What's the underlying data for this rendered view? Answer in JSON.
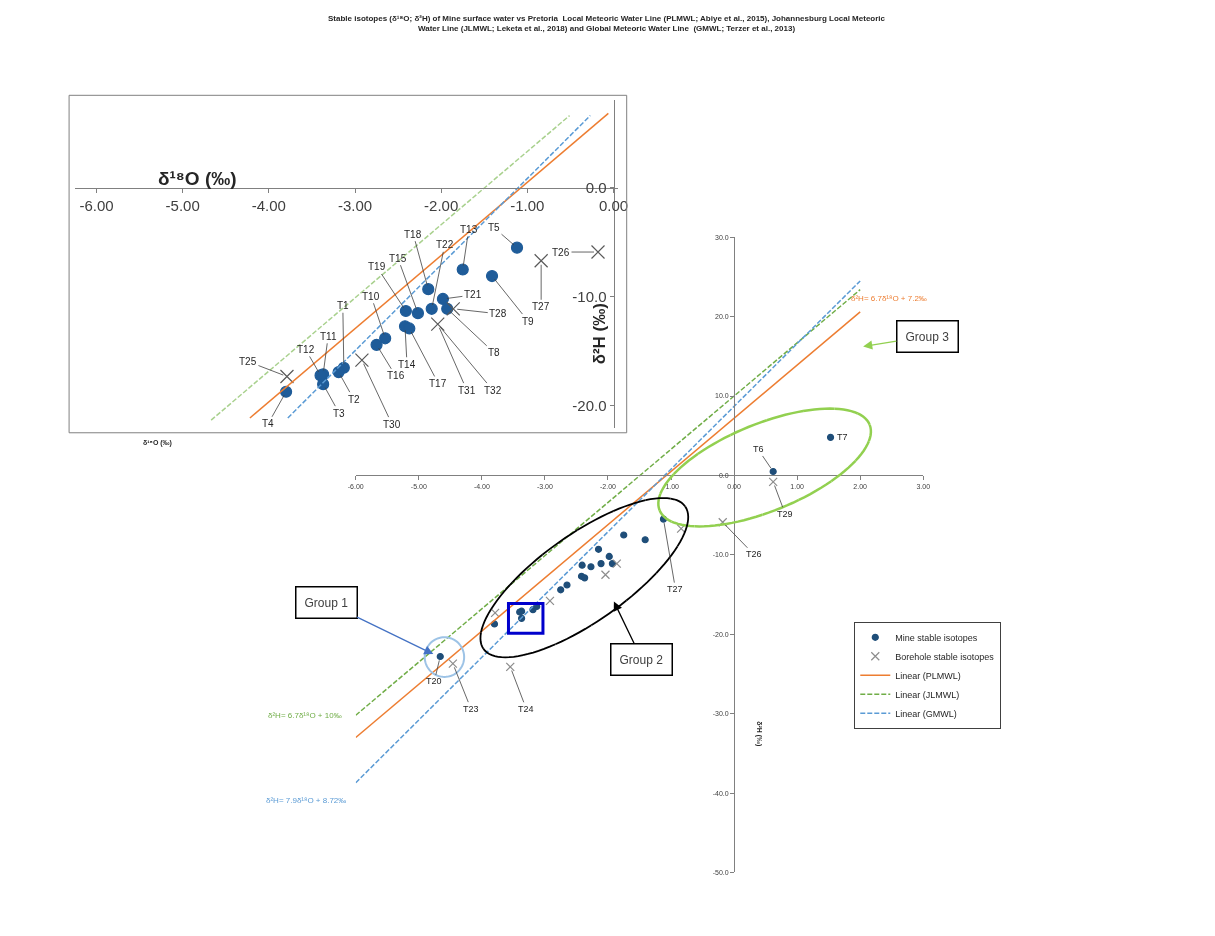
{
  "chart_data": [
    {
      "type": "scatter",
      "title": "Stable isotopes (δ¹⁸O; δ²H) of Mine surface water vs Pretoria  Local Meteoric Water Line (PLMWL; Abiye et al., 2015), Johannesburg Local Meteoric Water Line (JLMWL; Leketa et al., 2018) and Global Meteoric Water Line  (GMWL; Terzer et al., 2013)",
      "ylabel": "δ²H (‰)",
      "xlim": [
        -6,
        3
      ],
      "ylim": [
        -50,
        30
      ],
      "xticks": [
        {
          "value": -6,
          "label": "-6.00"
        },
        {
          "value": -5,
          "label": "-5.00"
        },
        {
          "value": -4,
          "label": "-4.00"
        },
        {
          "value": -3,
          "label": "-3.00"
        },
        {
          "value": -2,
          "label": "-2.00"
        },
        {
          "value": -1,
          "label": "-1.00"
        },
        {
          "value": 0,
          "label": "0.00"
        },
        {
          "value": 1,
          "label": "1.00"
        },
        {
          "value": 2,
          "label": "2.00"
        },
        {
          "value": 3,
          "label": "3.00"
        }
      ],
      "yticks": [
        {
          "value": -50,
          "label": "-50.0"
        },
        {
          "value": -40,
          "label": "-40.0"
        },
        {
          "value": -30,
          "label": "-30.0"
        },
        {
          "value": -20,
          "label": "-20.0"
        },
        {
          "value": -10,
          "label": "-10.0"
        },
        {
          "value": 0,
          "label": "0.0"
        },
        {
          "value": 10,
          "label": "10.0"
        },
        {
          "value": 20,
          "label": "20.0"
        },
        {
          "value": 30,
          "label": "30.0"
        }
      ],
      "legend": "bottom right",
      "series": [
        {
          "name": "Mine stable isotopes",
          "type": "scatter",
          "marker": "circle",
          "color": "#1f4e79",
          "x": [
            -1.12,
            -1.75,
            -1.41,
            -2.15,
            -1.98,
            -1.93,
            -2.11,
            -2.27,
            -2.41,
            -2.42,
            -2.37,
            -2.65,
            -2.75,
            -3.13,
            -3.19,
            -3.37,
            -3.4,
            -3.37,
            -3.8,
            -4.66,
            0.62,
            1.53
          ],
          "values": [
            -5.5,
            -7.5,
            -8.1,
            -9.3,
            -10.2,
            -11.1,
            -11.1,
            -11.5,
            -11.3,
            -12.7,
            -12.9,
            -13.8,
            -14.4,
            -16.5,
            -16.9,
            -17.1,
            -17.2,
            -18.0,
            -18.7,
            -22.8,
            0.5,
            4.8
          ]
        },
        {
          "name": "Borehole stable isotopes",
          "type": "scatter",
          "marker": "cross",
          "color": "#8c8c8c",
          "x": [
            -0.18,
            -0.84,
            -1.86,
            -2.04,
            -2.92,
            -3.79,
            -4.46,
            -3.55,
            0.62
          ],
          "values": [
            -5.9,
            -6.7,
            -11.1,
            -12.5,
            -15.8,
            -17.3,
            -23.7,
            -24.1,
            -0.8
          ]
        },
        {
          "name": "Linear (PLMWL)",
          "type": "line",
          "marker": "none",
          "line_style": "solid",
          "color": "#ed7d31",
          "x": [
            -6.0,
            2.0
          ],
          "values": [
            -33.0,
            20.6
          ]
        },
        {
          "name": "Linear (JLMWL)",
          "type": "line",
          "marker": "none",
          "line_style": "dashed",
          "color": "#70ad47",
          "x": [
            -6.0,
            2.0
          ],
          "values": [
            -30.2,
            23.4
          ]
        },
        {
          "name": "Linear (GMWL)",
          "type": "line",
          "marker": "none",
          "line_style": "dashed",
          "color": "#5b9bd5",
          "x": [
            -6.0,
            2.0
          ],
          "values": [
            -38.7,
            24.5
          ]
        }
      ],
      "annotations": [
        "δ²H= 6.7δ¹⁸O + 7.2‰",
        {
          "text": "δ²H= 6.7δ¹⁸O + 10‰",
          "x": -6.0,
          "y": -30.2
        },
        {
          "text": "δ²H= 7.9δ¹⁸O + 8.72‰",
          "x": -6.0,
          "y": -38.7
        },
        {
          "text": "Group 1",
          "x": -4.77,
          "y": -22.5
        },
        "Group 2",
        "Group 3",
        {
          "text": "T7",
          "x": 1.53,
          "y": 4.8
        },
        {
          "text": "T6",
          "x": 0.62,
          "y": 0.5
        },
        {
          "text": "T29",
          "x": 0.62,
          "y": -0.8
        },
        {
          "text": "T26",
          "x": -0.18,
          "y": -5.9
        },
        {
          "text": "T27",
          "x": -1.12,
          "y": -5.5
        },
        {
          "text": "T20",
          "x": -4.66,
          "y": -22.8
        },
        {
          "text": "T23",
          "x": -4.46,
          "y": -23.7
        },
        {
          "text": "T24",
          "x": -3.55,
          "y": -24.1
        }
      ]
    },
    {
      "type": "scatter",
      "xlabel": "δ¹⁸O (‰)",
      "ylabel": "δ²H (‰)",
      "xlim": [
        -6.25,
        0.05
      ],
      "ylim": [
        -22,
        8
      ],
      "xticks": [
        {
          "value": -6,
          "label": "-6.00"
        },
        {
          "value": -5,
          "label": "-5.00"
        },
        {
          "value": -4,
          "label": "-4.00"
        },
        {
          "value": -3,
          "label": "-3.00"
        },
        {
          "value": -2,
          "label": "-2.00"
        },
        {
          "value": -1,
          "label": "-1.00"
        },
        {
          "value": 0,
          "label": "0.00"
        }
      ],
      "yticks": [
        {
          "value": -20,
          "label": "-20.0"
        },
        {
          "value": -10,
          "label": "-10.0"
        },
        {
          "value": 0,
          "label": "0.0"
        }
      ],
      "series": [
        {
          "type": "scatter",
          "marker": "circle",
          "color": "#1f5c99",
          "x": [
            -1.12,
            -1.75,
            -1.41,
            -2.15,
            -1.98,
            -1.93,
            -2.11,
            -2.27,
            -2.41,
            -2.42,
            -2.37,
            -2.65,
            -2.75,
            -3.13,
            -3.19,
            -3.37,
            -3.4,
            -3.37,
            -3.8
          ],
          "values": [
            -5.5,
            -7.5,
            -8.1,
            -9.3,
            -10.2,
            -11.1,
            -11.1,
            -11.5,
            -11.3,
            -12.7,
            -12.9,
            -13.8,
            -14.4,
            -16.5,
            -16.9,
            -17.1,
            -17.2,
            -18.0,
            -18.7
          ]
        },
        {
          "type": "scatter",
          "marker": "cross",
          "color": "#595959",
          "x": [
            -0.18,
            -0.84,
            -1.86,
            -2.04,
            -2.92,
            -3.79
          ],
          "values": [
            -5.9,
            -6.7,
            -11.1,
            -12.5,
            -15.8,
            -17.3
          ]
        },
        {
          "type": "line",
          "marker": "none",
          "line_style": "solid",
          "color": "#ed7d31",
          "x": [
            -4.22,
            -0.06
          ],
          "values": [
            -21.1,
            6.8
          ]
        },
        {
          "type": "line",
          "marker": "none",
          "line_style": "dashed",
          "color": "#a9d18e",
          "x": [
            -4.67,
            -0.51
          ],
          "values": [
            -21.3,
            6.6
          ]
        },
        {
          "type": "line",
          "marker": "none",
          "line_style": "dashed",
          "color": "#5b9bd5",
          "x": [
            -3.78,
            -0.27
          ],
          "values": [
            -21.1,
            6.6
          ]
        }
      ],
      "annotations": [
        {
          "text": "T5",
          "x": -1.12,
          "y": -5.5
        },
        {
          "text": "T13",
          "x": -1.75,
          "y": -7.5
        },
        {
          "text": "T9",
          "x": -1.41,
          "y": -8.1
        },
        {
          "text": "T18",
          "x": -2.15,
          "y": -9.3
        },
        {
          "text": "T21",
          "x": -1.98,
          "y": -10.2
        },
        {
          "text": "T8",
          "x": -1.93,
          "y": -11.1
        },
        {
          "text": "T22",
          "x": -2.11,
          "y": -11.1
        },
        {
          "text": "T15",
          "x": -2.27,
          "y": -11.5
        },
        {
          "text": "T19",
          "x": -2.41,
          "y": -11.3
        },
        {
          "text": "T14",
          "x": -2.42,
          "y": -12.7
        },
        {
          "text": "T17",
          "x": -2.37,
          "y": -12.9
        },
        {
          "text": "T10",
          "x": -2.65,
          "y": -13.8
        },
        {
          "text": "T16",
          "x": -2.75,
          "y": -14.4
        },
        {
          "text": "T1",
          "x": -3.13,
          "y": -16.5
        },
        {
          "text": "T2",
          "x": -3.19,
          "y": -16.9
        },
        {
          "text": "T11",
          "x": -3.37,
          "y": -17.1
        },
        {
          "text": "T12",
          "x": -3.4,
          "y": -17.2
        },
        {
          "text": "T3",
          "x": -3.37,
          "y": -18.0
        },
        {
          "text": "T4",
          "x": -3.8,
          "y": -18.7
        },
        {
          "text": "T26",
          "x": -0.18,
          "y": -5.9
        },
        {
          "text": "T27",
          "x": -0.84,
          "y": -6.7
        },
        {
          "text": "T28",
          "x": -1.86,
          "y": -11.1
        },
        {
          "text": "T31",
          "x": -2.04,
          "y": -12.5
        },
        {
          "text": "T32",
          "x": -2.04,
          "y": -12.5
        },
        {
          "text": "T30",
          "x": -2.92,
          "y": -15.8
        },
        {
          "text": "T25",
          "x": -3.79,
          "y": -17.3
        },
        "δ¹⁸O (‰)"
      ]
    }
  ]
}
